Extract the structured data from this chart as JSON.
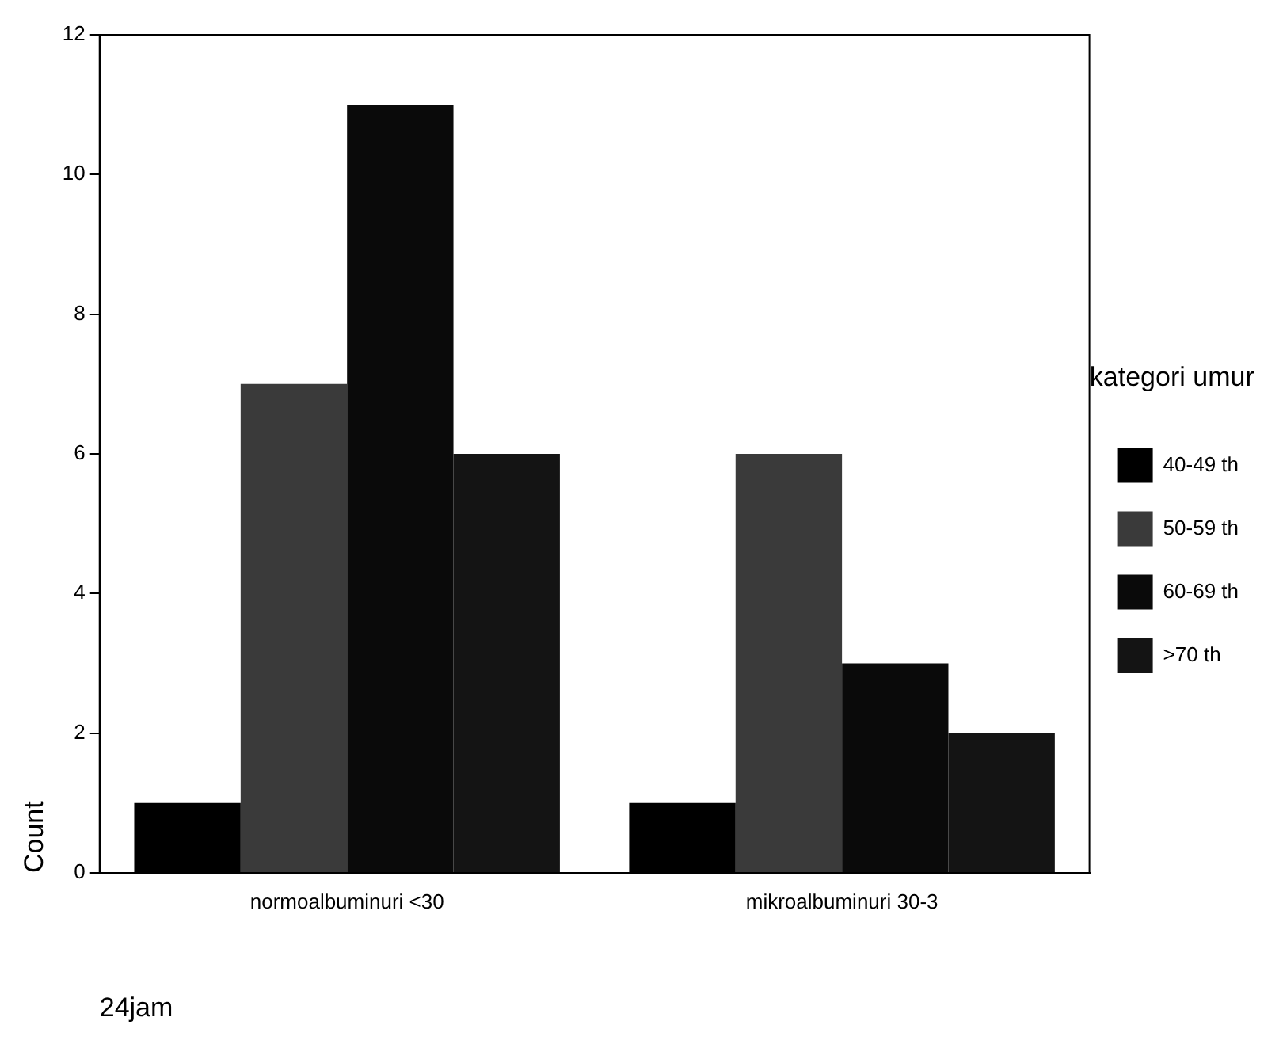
{
  "chart_data": {
    "type": "bar",
    "xlabel": "24jam",
    "ylabel": "Count",
    "legend_title": "kategori umur",
    "categories": [
      "normoalbuminuri <30",
      "mikroalbuminuri 30-3"
    ],
    "series": [
      {
        "name": "40-49 th",
        "color": "#000000",
        "values": [
          1,
          1
        ]
      },
      {
        "name": "50-59 th",
        "color": "#3a3a3a",
        "values": [
          7,
          6
        ]
      },
      {
        "name": "60-69 th",
        "color": "#0a0a0a",
        "values": [
          11,
          3
        ]
      },
      {
        "name": ">70 th",
        "color": "#141414",
        "values": [
          6,
          2
        ]
      }
    ],
    "ylim": [
      0,
      12
    ],
    "yticks": [
      0,
      2,
      4,
      6,
      8,
      10,
      12
    ],
    "grid": false,
    "legend": "right"
  }
}
